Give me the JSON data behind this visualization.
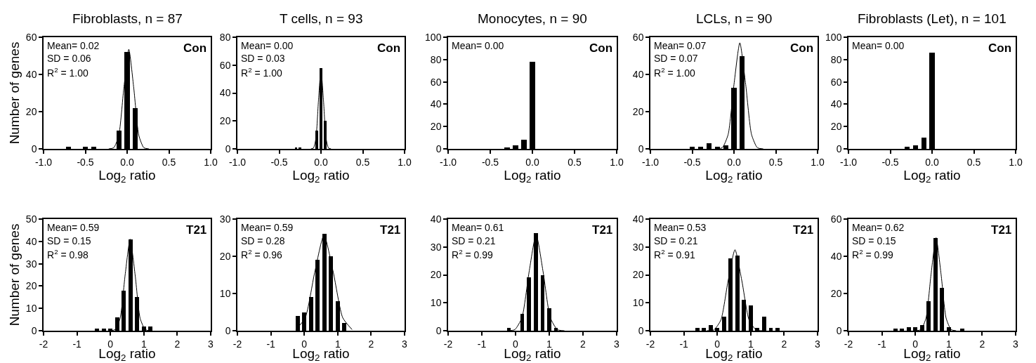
{
  "chart_data": [
    {
      "type": "bar",
      "title": "Fibroblasts, n = 87",
      "xlabel": "Log$_{2}$ ratio",
      "ylabel": "Number of genes",
      "xlim": [
        -1,
        1
      ],
      "xticks": [
        {
          "value": -1,
          "label": "-1.0"
        },
        {
          "value": -0.5,
          "label": "-0.5"
        },
        {
          "value": 0,
          "label": "0.0"
        },
        {
          "value": 0.5,
          "label": "0.5"
        },
        {
          "value": 1,
          "label": "1.0"
        }
      ],
      "ylim": [
        0,
        60
      ],
      "yticks": [
        0,
        20,
        40,
        60
      ],
      "annotations": [
        "Mean= 0.02",
        "SD = 0.06",
        "R$^{2}$ = 1.00",
        "Con"
      ],
      "series": [
        {
          "color": "#000000",
          "x": [
            -0.7,
            -0.5,
            -0.4,
            -0.1,
            0.0,
            0.1
          ],
          "values": [
            1,
            1,
            1,
            10,
            52,
            22
          ]
        },
        {
          "type": "line",
          "color": "#000000",
          "x": [
            -0.22,
            -0.16,
            -0.1,
            -0.04,
            0.02,
            0.08,
            0.14,
            0.2,
            0.26
          ],
          "values": [
            0,
            0.6,
            7.2,
            32.4,
            53.5,
            32.4,
            7.2,
            0.6,
            0
          ]
        }
      ]
    },
    {
      "type": "bar",
      "title": "T cells, n = 93",
      "xlabel": "Log$_{2}$ ratio",
      "xlim": [
        -1,
        1
      ],
      "xticks": [
        {
          "value": -1,
          "label": "-1.0"
        },
        {
          "value": -0.5,
          "label": "-0.5"
        },
        {
          "value": 0,
          "label": "0.0"
        },
        {
          "value": 0.5,
          "label": "0.5"
        },
        {
          "value": 1,
          "label": "1.0"
        }
      ],
      "ylim": [
        0,
        80
      ],
      "yticks": [
        0,
        20,
        40,
        60,
        80
      ],
      "annotations": [
        "Mean= 0.00",
        "SD = 0.03",
        "R$^{2}$ = 1.00",
        "Con"
      ],
      "series": [
        {
          "color": "#000000",
          "x": [
            -0.3,
            -0.25,
            -0.05,
            0.0,
            0.05
          ],
          "values": [
            1,
            1,
            13,
            58,
            20
          ]
        },
        {
          "type": "line",
          "color": "#000000",
          "x": [
            -0.12,
            -0.09,
            -0.06,
            -0.03,
            0.0,
            0.03,
            0.06,
            0.09,
            0.12
          ],
          "values": [
            0,
            0.6,
            7.7,
            34.6,
            57,
            34.6,
            7.7,
            0.6,
            0
          ]
        }
      ]
    },
    {
      "type": "bar",
      "title": "Monocytes, n = 90",
      "xlabel": "Log$_{2}$ ratio",
      "xlim": [
        -1,
        1
      ],
      "xticks": [
        {
          "value": -1,
          "label": "-1.0"
        },
        {
          "value": -0.5,
          "label": "-0.5"
        },
        {
          "value": 0,
          "label": "0.0"
        },
        {
          "value": 0.5,
          "label": "0.5"
        },
        {
          "value": 1,
          "label": "1.0"
        }
      ],
      "ylim": [
        0,
        100
      ],
      "yticks": [
        0,
        20,
        40,
        60,
        80,
        100
      ],
      "annotations": [
        "Mean= 0.00",
        "Con"
      ],
      "series": [
        {
          "color": "#000000",
          "x": [
            -0.3,
            -0.2,
            -0.1,
            0.0
          ],
          "values": [
            1,
            3,
            8,
            78
          ]
        }
      ]
    },
    {
      "type": "bar",
      "title": "LCLs, n = 90",
      "xlabel": "Log$_{2}$ ratio",
      "xlim": [
        -1,
        1
      ],
      "xticks": [
        {
          "value": -1,
          "label": "-1.0"
        },
        {
          "value": -0.5,
          "label": "-0.5"
        },
        {
          "value": 0,
          "label": "0.0"
        },
        {
          "value": 0.5,
          "label": "0.5"
        },
        {
          "value": 1,
          "label": "1.0"
        }
      ],
      "ylim": [
        0,
        60
      ],
      "yticks": [
        0,
        20,
        40,
        60
      ],
      "annotations": [
        "Mean= 0.07",
        "SD = 0.07",
        "R$^{2}$ = 1.00",
        "Con"
      ],
      "series": [
        {
          "color": "#000000",
          "x": [
            -0.5,
            -0.4,
            -0.3,
            -0.2,
            -0.1,
            0.0,
            0.1
          ],
          "values": [
            1,
            1,
            3,
            1,
            2,
            33,
            50
          ]
        },
        {
          "type": "line",
          "color": "#000000",
          "x": [
            -0.21,
            -0.14,
            -0.07,
            0.0,
            0.07,
            0.14,
            0.21,
            0.28,
            0.35
          ],
          "values": [
            0,
            0.6,
            7.7,
            34.6,
            57,
            34.6,
            7.7,
            0.6,
            0
          ]
        }
      ]
    },
    {
      "type": "bar",
      "title": "Fibroblasts (Let), n = 101",
      "xlabel": "Log$_{2}$ ratio",
      "xlim": [
        -1,
        1
      ],
      "xticks": [
        {
          "value": -1,
          "label": "-1.0"
        },
        {
          "value": -0.5,
          "label": "-0.5"
        },
        {
          "value": 0,
          "label": "0.0"
        },
        {
          "value": 0.5,
          "label": "0.5"
        },
        {
          "value": 1,
          "label": "1.0"
        }
      ],
      "ylim": [
        0,
        100
      ],
      "yticks": [
        0,
        20,
        40,
        60,
        80,
        100
      ],
      "annotations": [
        "Mean= 0.00",
        "Con"
      ],
      "series": [
        {
          "color": "#000000",
          "x": [
            -0.3,
            -0.2,
            -0.1,
            0.0
          ],
          "values": [
            2,
            3,
            10,
            86
          ]
        }
      ]
    },
    {
      "type": "bar",
      "xlabel": "Log$_{2}$ ratio",
      "ylabel": "Number of genes",
      "xlim": [
        -2,
        3
      ],
      "xticks": [
        -2,
        -1,
        0,
        1,
        2,
        3
      ],
      "ylim": [
        0,
        50
      ],
      "yticks": [
        0,
        10,
        20,
        30,
        40,
        50
      ],
      "annotations": [
        "Mean= 0.59",
        "SD = 0.15",
        "R$^{2}$ = 0.98",
        "T21"
      ],
      "series": [
        {
          "color": "#000000",
          "x": [
            -0.4,
            -0.2,
            0.0,
            0.2,
            0.4,
            0.6,
            0.8,
            1.0,
            1.2
          ],
          "values": [
            1,
            1,
            1,
            6,
            18,
            41,
            15,
            2,
            2
          ]
        },
        {
          "type": "line",
          "color": "#000000",
          "x": [
            -0.01,
            0.14,
            0.29,
            0.44,
            0.59,
            0.74,
            0.89,
            1.04,
            1.19
          ],
          "values": [
            0,
            0.5,
            5.5,
            24.9,
            41,
            24.9,
            5.5,
            0.5,
            0
          ]
        }
      ]
    },
    {
      "type": "bar",
      "xlabel": "Log$_{2}$ ratio",
      "xlim": [
        -2,
        3
      ],
      "xticks": [
        -2,
        -1,
        0,
        1,
        2,
        3
      ],
      "ylim": [
        0,
        30
      ],
      "yticks": [
        0,
        10,
        20,
        30
      ],
      "annotations": [
        "Mean= 0.59",
        "SD = 0.28",
        "R$^{2}$ = 0.96",
        "T21"
      ],
      "series": [
        {
          "color": "#000000",
          "x": [
            -0.2,
            0.0,
            0.2,
            0.4,
            0.6,
            0.8,
            1.0,
            1.2
          ],
          "values": [
            4,
            5,
            9,
            19,
            26,
            20,
            8,
            2
          ]
        },
        {
          "type": "line",
          "color": "#000000",
          "x": [
            -0.25,
            0.03,
            0.31,
            0.59,
            0.87,
            1.15,
            1.43
          ],
          "values": [
            0.3,
            3.5,
            15.6,
            25.7,
            15.6,
            3.5,
            0.3
          ]
        }
      ]
    },
    {
      "type": "bar",
      "xlabel": "Log$_{2}$ ratio",
      "xlim": [
        -2,
        3
      ],
      "xticks": [
        -2,
        -1,
        0,
        1,
        2,
        3
      ],
      "ylim": [
        0,
        40
      ],
      "yticks": [
        0,
        10,
        20,
        30,
        40
      ],
      "annotations": [
        "Mean= 0.61",
        "SD = 0.21",
        "R$^{2}$ = 0.99",
        "T21"
      ],
      "series": [
        {
          "color": "#000000",
          "x": [
            -0.2,
            0.2,
            0.4,
            0.6,
            0.8,
            1.0,
            1.2
          ],
          "values": [
            1,
            6,
            19,
            35,
            20,
            8,
            1
          ]
        },
        {
          "type": "line",
          "color": "#000000",
          "x": [
            -0.23,
            -0.02,
            0.19,
            0.4,
            0.61,
            0.82,
            1.03,
            1.24,
            1.45
          ],
          "values": [
            0,
            0.4,
            4.7,
            20.9,
            34.5,
            20.9,
            4.7,
            0.4,
            0
          ]
        }
      ]
    },
    {
      "type": "bar",
      "xlabel": "Log$_{2}$ ratio",
      "xlim": [
        -2,
        3
      ],
      "xticks": [
        -2,
        -1,
        0,
        1,
        2,
        3
      ],
      "ylim": [
        0,
        40
      ],
      "yticks": [
        0,
        10,
        20,
        30,
        40
      ],
      "annotations": [
        "Mean= 0.53",
        "SD = 0.21",
        "R$^{2}$ = 0.91",
        "T21"
      ],
      "series": [
        {
          "color": "#000000",
          "x": [
            -0.6,
            -0.4,
            -0.2,
            0.0,
            0.2,
            0.4,
            0.6,
            0.8,
            1.0,
            1.2,
            1.4,
            1.6,
            1.8
          ],
          "values": [
            1,
            1,
            2,
            1,
            5,
            26,
            27,
            11,
            9,
            1,
            5,
            1,
            1
          ]
        },
        {
          "type": "line",
          "color": "#000000",
          "x": [
            -0.31,
            -0.1,
            0.11,
            0.32,
            0.53,
            0.74,
            0.95,
            1.16,
            1.37
          ],
          "values": [
            0,
            0.3,
            3.9,
            17.6,
            29,
            17.6,
            3.9,
            0.3,
            0
          ]
        }
      ]
    },
    {
      "type": "bar",
      "xlabel": "Log$_{2}$ ratio",
      "xlim": [
        -2,
        3
      ],
      "xticks": [
        -2,
        -1,
        0,
        1,
        2,
        3
      ],
      "ylim": [
        0,
        60
      ],
      "yticks": [
        0,
        20,
        40,
        60
      ],
      "annotations": [
        "Mean= 0.62",
        "SD = 0.15",
        "R$^{2}$ = 0.99",
        "T21"
      ],
      "series": [
        {
          "color": "#000000",
          "x": [
            -0.6,
            -0.4,
            -0.2,
            0.0,
            0.2,
            0.4,
            0.6,
            0.8,
            1.0,
            1.4
          ],
          "values": [
            1,
            1,
            2,
            2,
            3,
            16,
            50,
            23,
            2,
            1
          ]
        },
        {
          "type": "line",
          "color": "#000000",
          "x": [
            0.02,
            0.17,
            0.32,
            0.47,
            0.62,
            0.77,
            0.92,
            1.07,
            1.22
          ],
          "values": [
            0,
            0.6,
            6.8,
            30.3,
            50,
            30.3,
            6.8,
            0.6,
            0
          ]
        }
      ]
    }
  ]
}
